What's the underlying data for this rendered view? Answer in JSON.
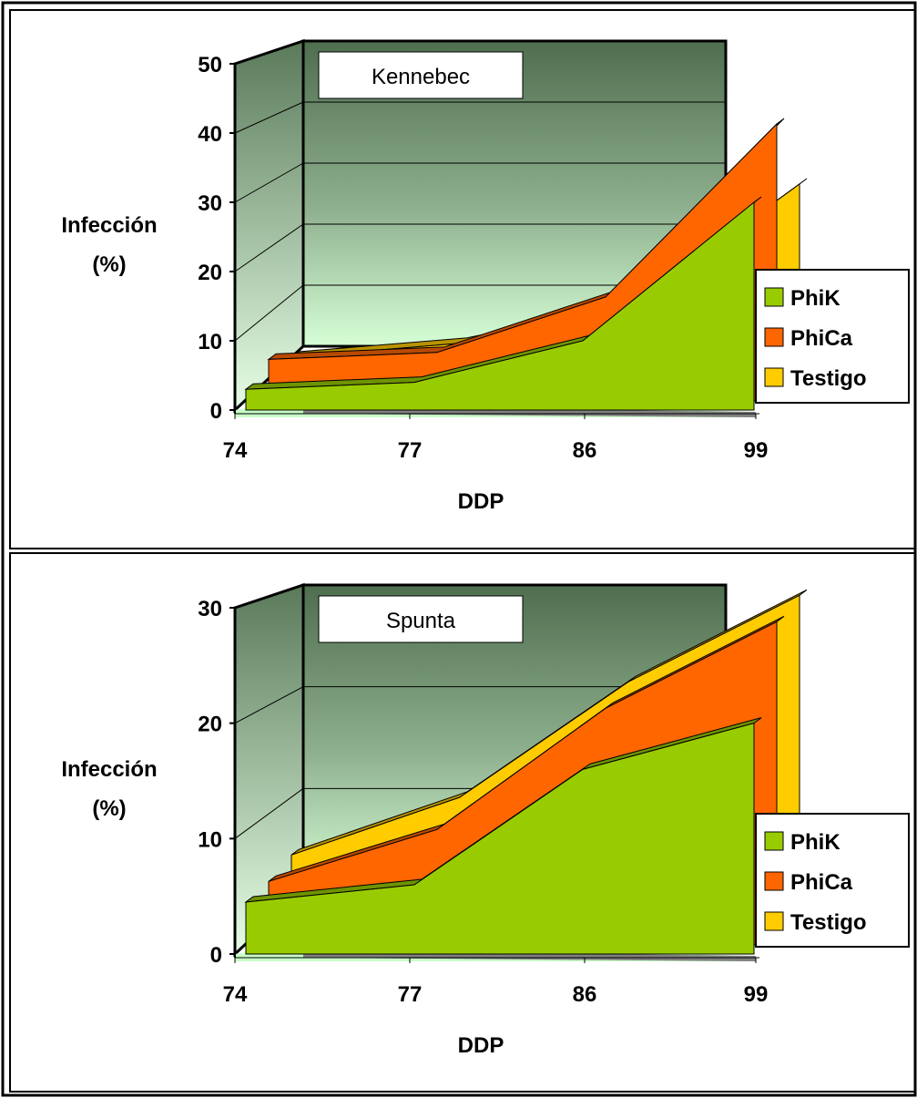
{
  "colors": {
    "phik": "#99cc00",
    "phica": "#ff6600",
    "testigo": "#ffcc00",
    "wall_top": "#5b7a5b",
    "wall_bottom": "#ccffcc",
    "floor_edge": "#808080"
  },
  "chart_data": [
    {
      "type": "area",
      "title": "Kennebec",
      "xlabel": "DDP",
      "ylabel_line1": "Infección",
      "ylabel_line2": "(%)",
      "categories": [
        "74",
        "77",
        "86",
        "99"
      ],
      "ylim": [
        0,
        50
      ],
      "yticks": [
        "0",
        "10",
        "20",
        "30",
        "40",
        "50"
      ],
      "legend_position": "right",
      "grid": true,
      "series": [
        {
          "name": "PhiK",
          "values": [
            3,
            4,
            10,
            30
          ]
        },
        {
          "name": "PhiCa",
          "values": [
            6,
            7,
            15,
            40
          ]
        },
        {
          "name": "Testigo",
          "values": [
            5,
            7,
            12,
            30
          ]
        }
      ]
    },
    {
      "type": "area",
      "title": "Spunta",
      "xlabel": "DDP",
      "ylabel_line1": "Infección",
      "ylabel_line2": "(%)",
      "categories": [
        "74",
        "77",
        "86",
        "99"
      ],
      "ylim": [
        0,
        30
      ],
      "yticks": [
        "0",
        "10",
        "20",
        "30"
      ],
      "legend_position": "right",
      "grid": true,
      "series": [
        {
          "name": "PhiK",
          "values": [
            4.5,
            6,
            16,
            20
          ]
        },
        {
          "name": "PhiCa",
          "values": [
            5.5,
            10,
            20.5,
            28
          ]
        },
        {
          "name": "Testigo",
          "values": [
            7,
            12,
            22,
            29.5
          ]
        }
      ]
    }
  ]
}
